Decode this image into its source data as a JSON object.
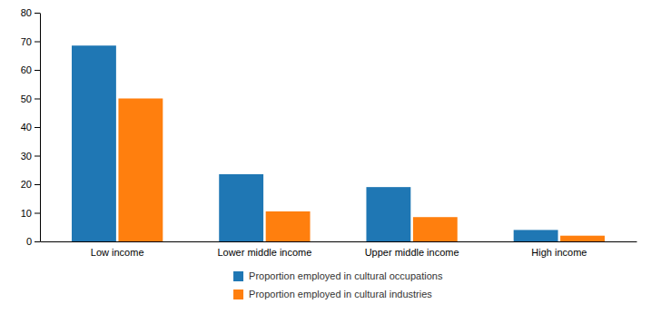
{
  "chart_data": {
    "type": "bar",
    "categories": [
      "Low income",
      "Lower middle income",
      "Upper middle income",
      "High income"
    ],
    "series": [
      {
        "name": "Proportion employed in cultural occupations",
        "values": [
          68.5,
          23.5,
          19.0,
          4.0
        ]
      },
      {
        "name": "Proportion employed in cultural industries",
        "values": [
          50.0,
          10.5,
          8.5,
          2.0
        ]
      }
    ],
    "ylim": [
      0,
      80
    ],
    "yticks": [
      0,
      10,
      20,
      30,
      40,
      50,
      60,
      70,
      80
    ],
    "grid": false,
    "legend": "bottom"
  }
}
